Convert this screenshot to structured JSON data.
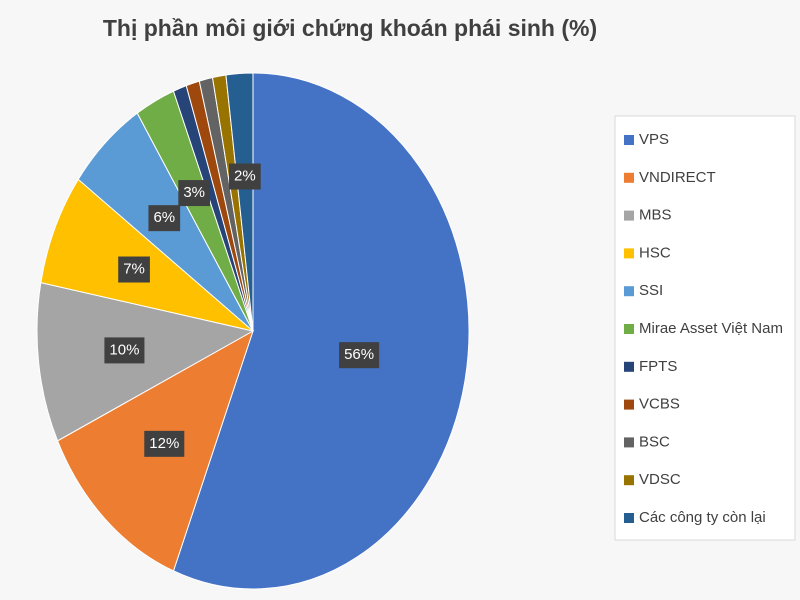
{
  "chart_data": {
    "type": "pie",
    "title": "Thị phần môi giới chứng khoán phái sinh (%)",
    "categories": [
      "VPS",
      "VNDIRECT",
      "MBS",
      "HSC",
      "SSI",
      "Mirae Asset Việt Nam",
      "FPTS",
      "VCBS",
      "BSC",
      "VDSC",
      "Các công ty còn lại"
    ],
    "values": [
      56,
      12,
      10,
      7,
      6,
      3,
      1,
      1,
      1,
      1,
      2
    ],
    "value_labels": [
      "56%",
      "12%",
      "10%",
      "7%",
      "6%",
      "3%",
      null,
      null,
      null,
      null,
      "2%"
    ],
    "colors": [
      "#4472c4",
      "#ed7d31",
      "#a5a5a5",
      "#ffc000",
      "#5b9bd5",
      "#70ad47",
      "#264478",
      "#9e480e",
      "#636363",
      "#997300",
      "#255e91"
    ],
    "legend": "right"
  }
}
